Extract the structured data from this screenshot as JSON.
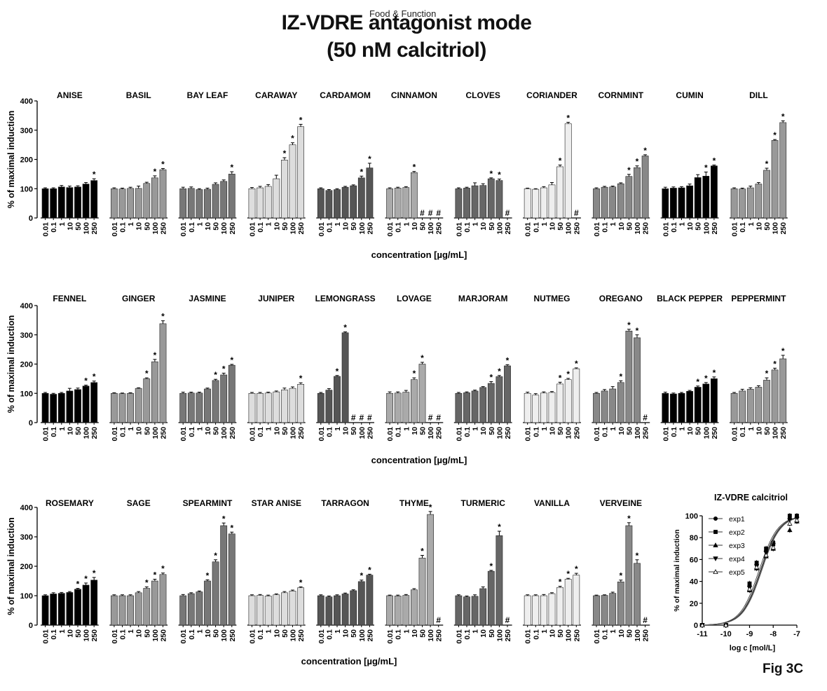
{
  "journal": "Food & Function",
  "title_line1": "IZ-VDRE antagonist mode",
  "title_line2": "(50 nM calcitriol)",
  "fig_label": "Fig 3C",
  "chart_data": [
    {
      "type": "bar",
      "panel_row": 1,
      "ylabel": "% of maximal induction",
      "xlabel": "concentration [µg/mL]",
      "ylim": [
        0,
        400
      ],
      "yticks": [
        0,
        100,
        200,
        300,
        400
      ],
      "concentrations": [
        "0.01",
        "0.1",
        "1",
        "10",
        "50",
        "100",
        "250"
      ],
      "groups": [
        {
          "name": "ANISE",
          "shade": "#000000",
          "values": [
            100,
            100,
            106,
            104,
            106,
            116,
            128
          ],
          "err": [
            3,
            3,
            5,
            5,
            4,
            5,
            6
          ],
          "marks": [
            "",
            "",
            "",
            "",
            "",
            "",
            "*"
          ]
        },
        {
          "name": "BASIL",
          "shade": "#999999",
          "values": [
            100,
            99,
            101,
            101,
            118,
            137,
            165
          ],
          "err": [
            3,
            3,
            4,
            8,
            4,
            7,
            4
          ],
          "marks": [
            "",
            "",
            "",
            "",
            "",
            "*",
            "*"
          ]
        },
        {
          "name": "BAY LEAF",
          "shade": "#777777",
          "values": [
            100,
            101,
            97,
            98,
            115,
            125,
            150
          ],
          "err": [
            5,
            5,
            3,
            4,
            5,
            5,
            8
          ],
          "marks": [
            "",
            "",
            "",
            "",
            "",
            "",
            "*"
          ]
        },
        {
          "name": "CARAWAY",
          "shade": "#dddddd",
          "values": [
            100,
            103,
            108,
            134,
            198,
            250,
            312
          ],
          "err": [
            4,
            5,
            6,
            12,
            8,
            7,
            8
          ],
          "marks": [
            "",
            "",
            "",
            "",
            "*",
            "*",
            "*"
          ]
        },
        {
          "name": "CARDAMOM",
          "shade": "#555555",
          "values": [
            100,
            94,
            97,
            105,
            110,
            137,
            171
          ],
          "err": [
            3,
            3,
            3,
            3,
            3,
            6,
            16
          ],
          "marks": [
            "",
            "",
            "",
            "",
            "",
            "*",
            "*"
          ]
        },
        {
          "name": "CINNAMON",
          "shade": "#aaaaaa",
          "values": [
            100,
            102,
            104,
            155,
            null,
            null,
            null
          ],
          "err": [
            3,
            3,
            3,
            4,
            0,
            0,
            0
          ],
          "marks": [
            "",
            "",
            "",
            "*",
            "#",
            "#",
            "#"
          ]
        },
        {
          "name": "CLOVES",
          "shade": "#666666",
          "values": [
            100,
            102,
            110,
            111,
            134,
            128,
            null
          ],
          "err": [
            3,
            3,
            10,
            6,
            3,
            5,
            0
          ],
          "marks": [
            "",
            "",
            "",
            "",
            "*",
            "*",
            "#"
          ]
        },
        {
          "name": "CORIANDER",
          "shade": "#eeeeee",
          "values": [
            100,
            98,
            103,
            113,
            175,
            322,
            null
          ],
          "err": [
            2,
            2,
            4,
            8,
            6,
            5,
            0
          ],
          "marks": [
            "",
            "",
            "",
            "",
            "*",
            "*",
            "#"
          ]
        },
        {
          "name": "CORNMINT",
          "shade": "#888888",
          "values": [
            100,
            105,
            106,
            117,
            142,
            172,
            212
          ],
          "err": [
            3,
            3,
            3,
            3,
            7,
            6,
            4
          ],
          "marks": [
            "",
            "",
            "",
            "",
            "*",
            "*",
            "*"
          ]
        },
        {
          "name": "CUMIN",
          "shade": "#000000",
          "values": [
            100,
            102,
            103,
            110,
            138,
            143,
            178
          ],
          "err": [
            5,
            4,
            4,
            6,
            10,
            14,
            3
          ],
          "marks": [
            "",
            "",
            "",
            "",
            "",
            "*",
            "*"
          ]
        },
        {
          "name": "DILL",
          "shade": "#999999",
          "values": [
            100,
            99,
            103,
            116,
            163,
            265,
            326
          ],
          "err": [
            3,
            3,
            6,
            5,
            7,
            3,
            6
          ],
          "marks": [
            "",
            "",
            "",
            "",
            "*",
            "*",
            "*"
          ]
        }
      ]
    },
    {
      "type": "bar",
      "panel_row": 2,
      "ylabel": "% of maximal induction",
      "xlabel": "concentration [µg/mL]",
      "ylim": [
        0,
        400
      ],
      "yticks": [
        0,
        100,
        200,
        300,
        400
      ],
      "concentrations": [
        "0.01",
        "0.1",
        "1",
        "10",
        "50",
        "100",
        "250"
      ],
      "groups": [
        {
          "name": "FENNEL",
          "shade": "#000000",
          "values": [
            100,
            97,
            100,
            108,
            113,
            125,
            137
          ],
          "err": [
            3,
            3,
            3,
            9,
            5,
            3,
            5
          ],
          "marks": [
            "",
            "",
            "",
            "",
            "",
            "*",
            "*"
          ]
        },
        {
          "name": "GINGER",
          "shade": "#999999",
          "values": [
            100,
            99,
            100,
            117,
            150,
            208,
            338
          ],
          "err": [
            2,
            2,
            2,
            2,
            3,
            8,
            10
          ],
          "marks": [
            "",
            "",
            "",
            "",
            "*",
            "*",
            "*"
          ]
        },
        {
          "name": "JASMINE",
          "shade": "#777777",
          "values": [
            100,
            101,
            101,
            115,
            144,
            163,
            196
          ],
          "err": [
            4,
            3,
            3,
            3,
            4,
            6,
            3
          ],
          "marks": [
            "",
            "",
            "",
            "",
            "*",
            "*",
            "*"
          ]
        },
        {
          "name": "JUNIPER",
          "shade": "#dddddd",
          "values": [
            100,
            100,
            101,
            105,
            112,
            117,
            131
          ],
          "err": [
            3,
            3,
            3,
            3,
            6,
            5,
            5
          ],
          "marks": [
            "",
            "",
            "",
            "",
            "",
            "",
            "*"
          ]
        },
        {
          "name": "LEMONGRASS",
          "shade": "#555555",
          "values": [
            100,
            111,
            158,
            307,
            null,
            null,
            null
          ],
          "err": [
            3,
            5,
            3,
            3,
            0,
            0,
            0
          ],
          "marks": [
            "",
            "",
            "*",
            "*",
            "#",
            "#",
            "#"
          ]
        },
        {
          "name": "LOVAGE",
          "shade": "#aaaaaa",
          "values": [
            100,
            101,
            104,
            147,
            200,
            null,
            null
          ],
          "err": [
            5,
            4,
            6,
            6,
            6,
            0,
            0
          ],
          "marks": [
            "",
            "",
            "",
            "*",
            "*",
            "#",
            "#"
          ]
        },
        {
          "name": "MARJORAM",
          "shade": "#666666",
          "values": [
            100,
            102,
            108,
            120,
            134,
            157,
            194
          ],
          "err": [
            3,
            3,
            3,
            3,
            6,
            4,
            4
          ],
          "marks": [
            "",
            "",
            "",
            "",
            "*",
            "*",
            "*"
          ]
        },
        {
          "name": "NUTMEG",
          "shade": "#eeeeee",
          "values": [
            100,
            94,
            101,
            103,
            132,
            147,
            184
          ],
          "err": [
            4,
            5,
            4,
            3,
            6,
            4,
            3
          ],
          "marks": [
            "",
            "",
            "",
            "",
            "*",
            "*",
            "*"
          ]
        },
        {
          "name": "OREGANO",
          "shade": "#888888",
          "values": [
            100,
            108,
            115,
            137,
            313,
            290,
            null
          ],
          "err": [
            3,
            5,
            8,
            6,
            6,
            10,
            0
          ],
          "marks": [
            "",
            "",
            "",
            "*",
            "*",
            "*",
            "#"
          ]
        },
        {
          "name": "BLACK PEPPER",
          "shade": "#000000",
          "values": [
            100,
            98,
            100,
            107,
            121,
            132,
            150
          ],
          "err": [
            4,
            3,
            3,
            3,
            4,
            5,
            6
          ],
          "marks": [
            "",
            "",
            "",
            "",
            "*",
            "*",
            "*"
          ]
        },
        {
          "name": "PEPPERMINT",
          "shade": "#999999",
          "values": [
            100,
            108,
            114,
            121,
            145,
            180,
            218
          ],
          "err": [
            3,
            6,
            5,
            5,
            8,
            6,
            12
          ],
          "marks": [
            "",
            "",
            "",
            "",
            "*",
            "*",
            "*"
          ]
        }
      ]
    },
    {
      "type": "bar",
      "panel_row": 3,
      "ylabel": "% of maximal induction",
      "xlabel": "concentration [µg/mL]",
      "ylim": [
        0,
        400
      ],
      "yticks": [
        0,
        100,
        200,
        300,
        400
      ],
      "concentrations": [
        "0.01",
        "0.1",
        "1",
        "10",
        "50",
        "100",
        "250"
      ],
      "groups": [
        {
          "name": "ROSEMARY",
          "shade": "#000000",
          "values": [
            100,
            106,
            108,
            111,
            122,
            136,
            153
          ],
          "err": [
            3,
            4,
            3,
            3,
            3,
            7,
            9
          ],
          "marks": [
            "",
            "",
            "",
            "",
            "*",
            "*",
            "*"
          ]
        },
        {
          "name": "SAGE",
          "shade": "#999999",
          "values": [
            100,
            100,
            100,
            110,
            125,
            150,
            172
          ],
          "err": [
            3,
            3,
            3,
            4,
            5,
            6,
            5
          ],
          "marks": [
            "",
            "",
            "",
            "",
            "*",
            "*",
            "*"
          ]
        },
        {
          "name": "SPEARMINT",
          "shade": "#777777",
          "values": [
            100,
            107,
            113,
            150,
            215,
            338,
            310
          ],
          "err": [
            4,
            3,
            3,
            4,
            7,
            9,
            6
          ],
          "marks": [
            "",
            "",
            "",
            "*",
            "*",
            "*",
            "*"
          ]
        },
        {
          "name": "STAR ANISE",
          "shade": "#dddddd",
          "values": [
            100,
            101,
            99,
            103,
            110,
            116,
            127
          ],
          "err": [
            3,
            3,
            3,
            3,
            4,
            3,
            3
          ],
          "marks": [
            "",
            "",
            "",
            "",
            "",
            "",
            "*"
          ]
        },
        {
          "name": "TARRAGON",
          "shade": "#555555",
          "values": [
            100,
            96,
            100,
            106,
            117,
            148,
            170
          ],
          "err": [
            3,
            3,
            3,
            3,
            3,
            5,
            3
          ],
          "marks": [
            "",
            "",
            "",
            "",
            "",
            "*",
            "*"
          ]
        },
        {
          "name": "THYME",
          "shade": "#aaaaaa",
          "values": [
            100,
            99,
            101,
            120,
            228,
            376,
            null
          ],
          "err": [
            2,
            3,
            3,
            4,
            9,
            10,
            0
          ],
          "marks": [
            "",
            "",
            "",
            "",
            "*",
            "*",
            "#"
          ]
        },
        {
          "name": "TURMERIC",
          "shade": "#666666",
          "values": [
            100,
            96,
            98,
            124,
            183,
            304,
            null
          ],
          "err": [
            3,
            3,
            5,
            6,
            3,
            15,
            0
          ],
          "marks": [
            "",
            "",
            "",
            "",
            "*",
            "*",
            "#"
          ]
        },
        {
          "name": "VANILLA",
          "shade": "#eeeeee",
          "values": [
            100,
            100,
            100,
            107,
            128,
            156,
            170
          ],
          "err": [
            3,
            3,
            4,
            3,
            4,
            3,
            6
          ],
          "marks": [
            "",
            "",
            "",
            "",
            "*",
            "*",
            "*"
          ]
        },
        {
          "name": "VERVEINE",
          "shade": "#888888",
          "values": [
            100,
            101,
            108,
            147,
            338,
            210,
            null
          ],
          "err": [
            2,
            2,
            4,
            6,
            10,
            12,
            0
          ],
          "marks": [
            "",
            "",
            "",
            "*",
            "*",
            "*",
            "#"
          ]
        }
      ]
    },
    {
      "type": "line",
      "title": "IZ-VDRE calcitriol",
      "xlabel": "log c [mol/L]",
      "ylabel": "% of maximal induction",
      "xlim": [
        -11,
        -7
      ],
      "ylim": [
        0,
        100
      ],
      "xticks": [
        -11,
        -10,
        -9,
        -8,
        -7
      ],
      "yticks": [
        0,
        20,
        40,
        60,
        80,
        100
      ],
      "legend": [
        "exp1",
        "exp2",
        "exp3",
        "exp4",
        "exp5"
      ],
      "legend_position": "top-left",
      "x": [
        -11,
        -10,
        -9,
        -8.7,
        -8.3,
        -8,
        -7.3,
        -7
      ],
      "series": [
        {
          "name": "exp1",
          "marker": "circle",
          "logEC50": -8.55,
          "values": [
            0,
            0,
            36,
            55,
            68,
            76,
            97,
            99
          ]
        },
        {
          "name": "exp2",
          "marker": "square",
          "logEC50": -8.6,
          "values": [
            0,
            0,
            38,
            57,
            70,
            74,
            100,
            100
          ]
        },
        {
          "name": "exp3",
          "marker": "triangle",
          "logEC50": -8.5,
          "values": [
            0,
            0,
            32,
            52,
            63,
            70,
            87,
            95
          ]
        },
        {
          "name": "exp4",
          "marker": "triangle-down",
          "logEC50": -8.52,
          "values": [
            0,
            0,
            34,
            54,
            66,
            73,
            96,
            97
          ]
        },
        {
          "name": "exp5",
          "marker": "triangle-open",
          "logEC50": -8.48,
          "values": [
            0,
            0,
            33,
            53,
            64,
            71,
            93,
            96
          ]
        }
      ]
    }
  ]
}
